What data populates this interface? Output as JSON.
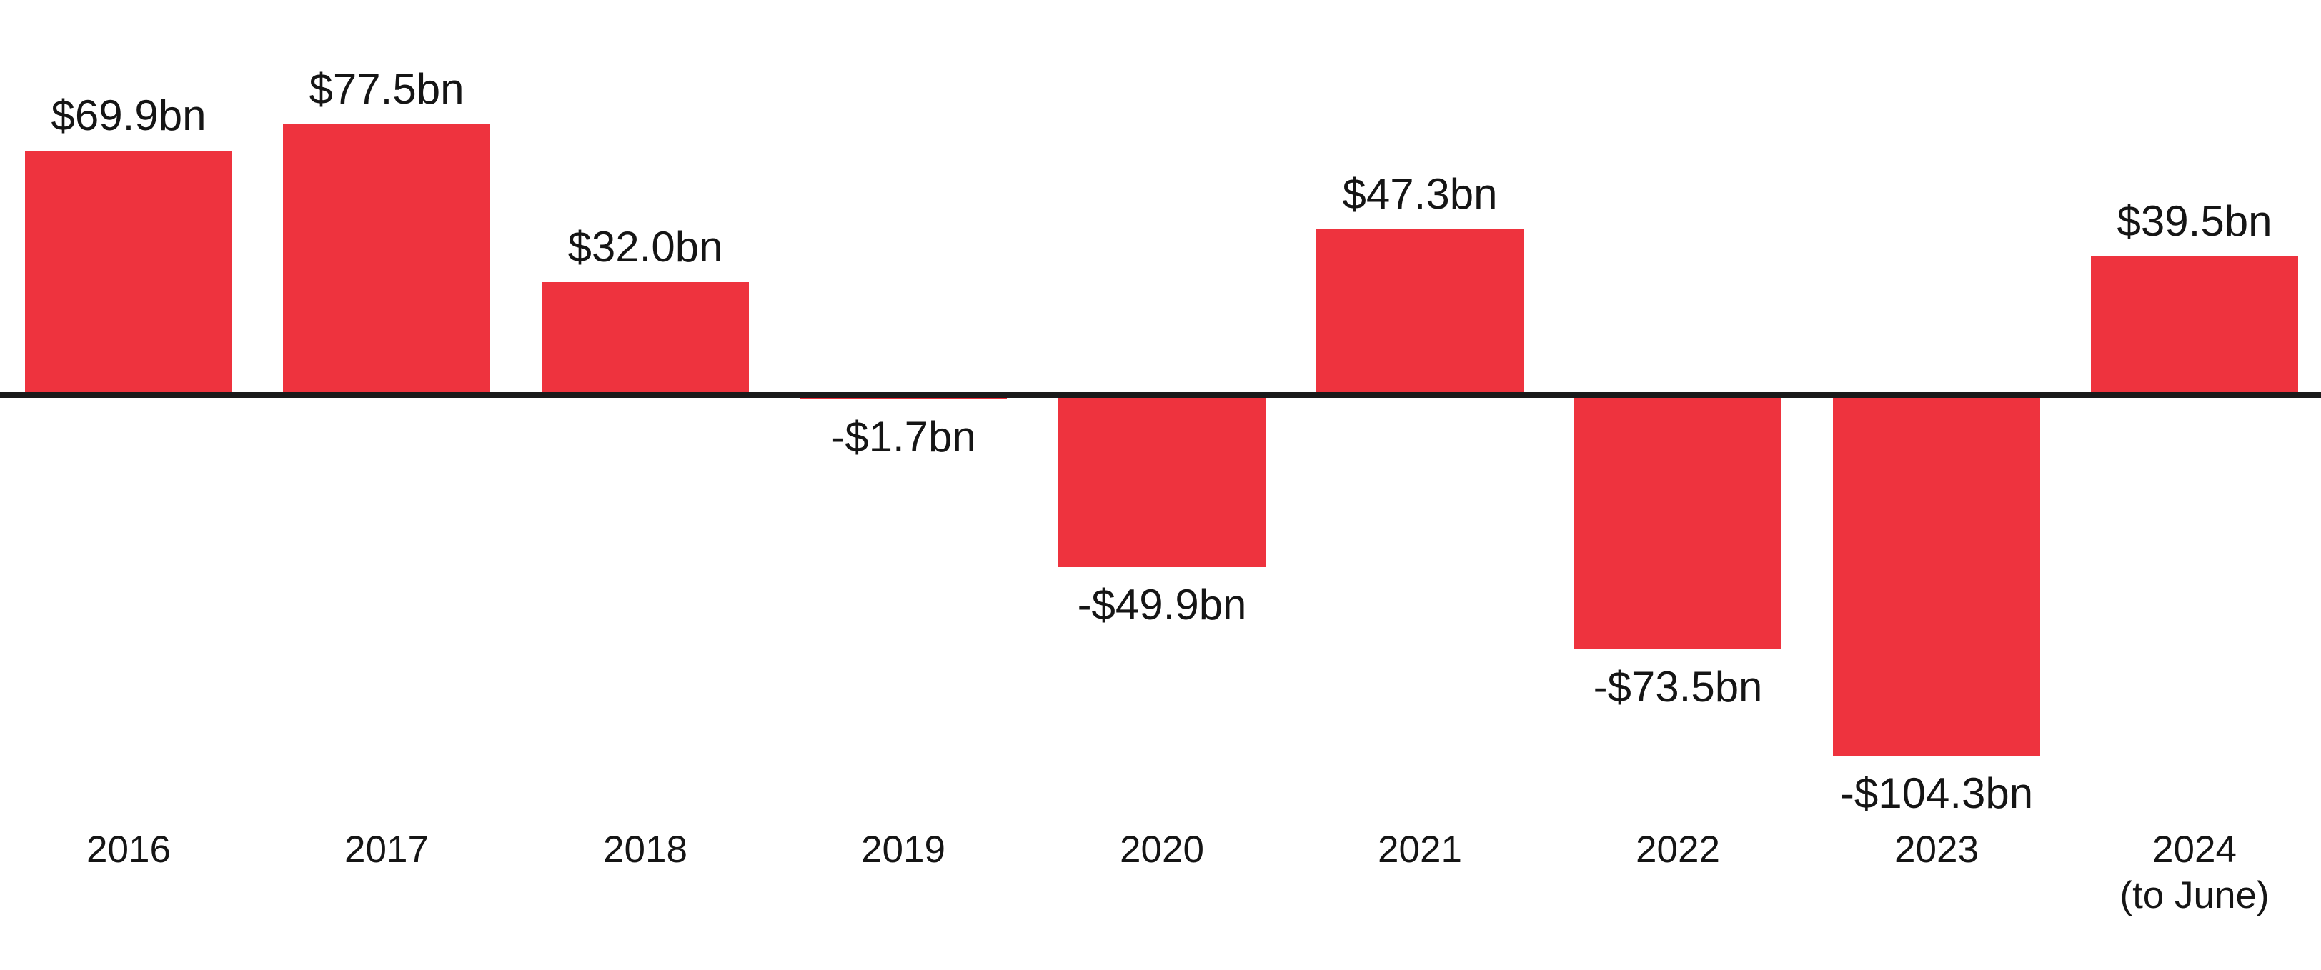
{
  "chart_data": {
    "type": "bar",
    "title": "",
    "xlabel": "",
    "ylabel": "",
    "categories": [
      {
        "label": "2016",
        "sublabel": ""
      },
      {
        "label": "2017",
        "sublabel": ""
      },
      {
        "label": "2018",
        "sublabel": ""
      },
      {
        "label": "2019",
        "sublabel": ""
      },
      {
        "label": "2020",
        "sublabel": ""
      },
      {
        "label": "2021",
        "sublabel": ""
      },
      {
        "label": "2022",
        "sublabel": ""
      },
      {
        "label": "2023",
        "sublabel": ""
      },
      {
        "label": "2024",
        "sublabel": "(to June)"
      }
    ],
    "values": [
      69.9,
      77.5,
      32.0,
      -1.7,
      -49.9,
      47.3,
      -73.5,
      -104.3,
      39.5
    ],
    "bar_labels": [
      "$69.9bn",
      "$77.5bn",
      "$32.0bn",
      "-$1.7bn",
      "-$49.9bn",
      "$47.3bn",
      "-$73.5bn",
      "-$104.3bn",
      "$39.5bn"
    ],
    "ylim": [
      -110,
      85
    ],
    "grid": false,
    "legend": "none",
    "bar_color": "#EE333E",
    "axis_color": "#1A1A1A",
    "text_color": "#151515"
  }
}
